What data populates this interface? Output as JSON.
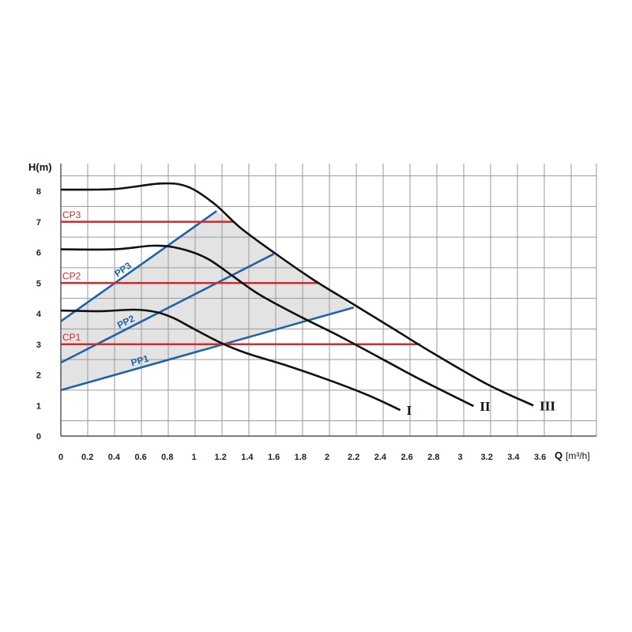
{
  "chart_data": {
    "type": "line",
    "xlabel": "Q",
    "xunit": "[m³/h]",
    "ylabel": "H(m)",
    "xlim": [
      0,
      3.9
    ],
    "ylim": [
      0,
      8.8
    ],
    "x_ticks": [
      0,
      0.2,
      0.4,
      0.6,
      0.8,
      1,
      1.2,
      1.4,
      1.6,
      1.8,
      2,
      2.2,
      2.4,
      2.6,
      2.8,
      3,
      3.2,
      3.4,
      3.6
    ],
    "x_tick_labels": [
      "0",
      "0.2",
      "0.4",
      "0.6",
      "0.8",
      "1",
      "1.2",
      "1.4",
      "1.6",
      "1.8",
      "2",
      "2.2",
      "2.4",
      "2.6",
      "2.8",
      "3",
      "3.2",
      "3.4",
      "3.6"
    ],
    "y_ticks": [
      0,
      1,
      2,
      3,
      4,
      5,
      6,
      7,
      8
    ],
    "y_tick_labels": [
      "0",
      "1",
      "2",
      "3",
      "4",
      "5",
      "6",
      "7",
      "8"
    ],
    "grid": true,
    "pump_curves": [
      {
        "label": "I",
        "color": "#111111",
        "points": [
          [
            0,
            4.1
          ],
          [
            0.3,
            4.08
          ],
          [
            0.55,
            4.13
          ],
          [
            0.72,
            4.05
          ],
          [
            0.85,
            3.85
          ],
          [
            1.0,
            3.5
          ],
          [
            1.2,
            3.05
          ],
          [
            1.4,
            2.7
          ],
          [
            1.7,
            2.3
          ],
          [
            2.0,
            1.85
          ],
          [
            2.3,
            1.35
          ],
          [
            2.55,
            0.85
          ]
        ]
      },
      {
        "label": "II",
        "color": "#111111",
        "points": [
          [
            0,
            6.1
          ],
          [
            0.4,
            6.1
          ],
          [
            0.7,
            6.22
          ],
          [
            0.9,
            6.12
          ],
          [
            1.1,
            5.8
          ],
          [
            1.3,
            5.2
          ],
          [
            1.5,
            4.6
          ],
          [
            1.8,
            3.9
          ],
          [
            2.1,
            3.25
          ],
          [
            2.4,
            2.55
          ],
          [
            2.7,
            1.85
          ],
          [
            3.1,
            0.98
          ]
        ]
      },
      {
        "label": "III",
        "color": "#111111",
        "points": [
          [
            0,
            8.05
          ],
          [
            0.4,
            8.07
          ],
          [
            0.75,
            8.25
          ],
          [
            0.95,
            8.15
          ],
          [
            1.15,
            7.6
          ],
          [
            1.35,
            6.8
          ],
          [
            1.6,
            6.0
          ],
          [
            1.9,
            5.1
          ],
          [
            2.2,
            4.3
          ],
          [
            2.5,
            3.5
          ],
          [
            2.8,
            2.7
          ],
          [
            3.2,
            1.7
          ],
          [
            3.55,
            1.0
          ]
        ]
      }
    ],
    "proportional_pressure": [
      {
        "label": "PP1",
        "color": "#1f63a8",
        "points": [
          [
            0,
            1.5
          ],
          [
            2.2,
            4.2
          ]
        ]
      },
      {
        "label": "PP2",
        "color": "#1f63a8",
        "points": [
          [
            0,
            2.4
          ],
          [
            1.6,
            5.95
          ]
        ]
      },
      {
        "label": "PP3",
        "color": "#1f63a8",
        "points": [
          [
            0,
            3.75
          ],
          [
            1.17,
            7.35
          ]
        ]
      }
    ],
    "constant_pressure": [
      {
        "label": "CP1",
        "color": "#d42a2a",
        "y": 3,
        "x_end": 2.7
      },
      {
        "label": "CP2",
        "color": "#d42a2a",
        "y": 5,
        "x_end": 1.93
      },
      {
        "label": "CP3",
        "color": "#d42a2a",
        "y": 7,
        "x_end": 1.3
      }
    ],
    "operating_region": [
      [
        0,
        1.5
      ],
      [
        2.2,
        4.2
      ],
      [
        1.17,
        7.35
      ],
      [
        0,
        3.75
      ]
    ],
    "region_color": "#e3e3e3"
  }
}
